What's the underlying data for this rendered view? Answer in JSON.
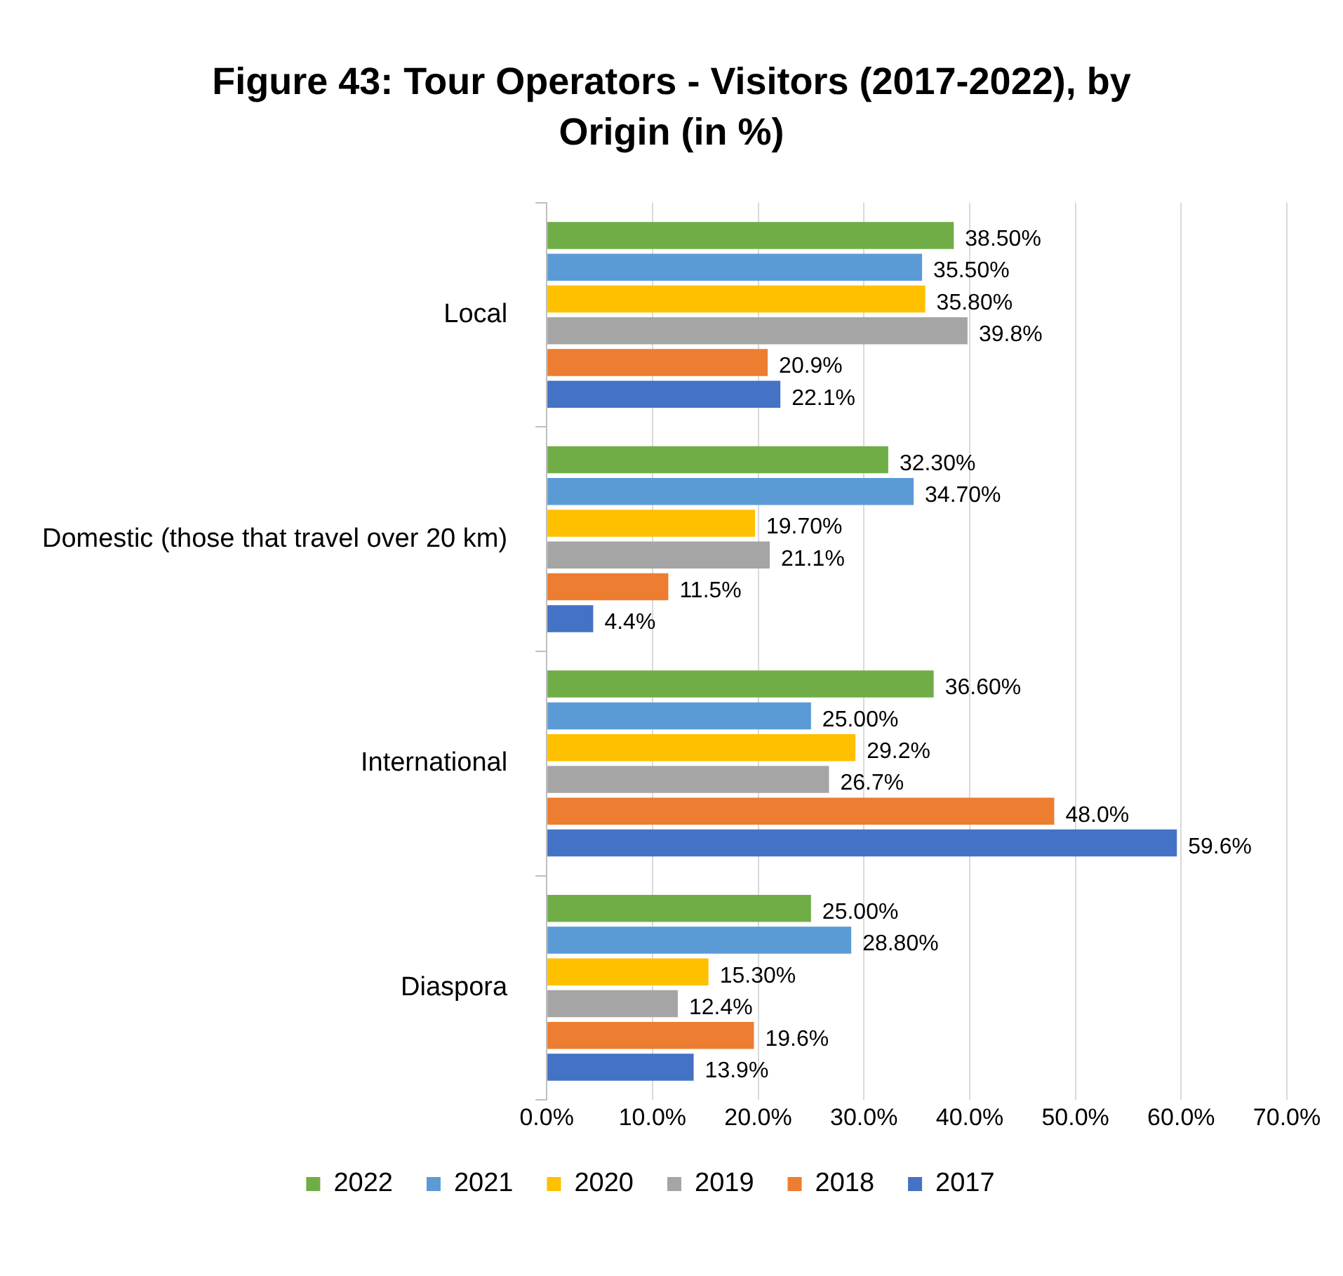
{
  "chart_data": {
    "type": "bar",
    "orientation": "horizontal",
    "title": "Figure 43: Tour Operators -  Visitors (2017-2022), by Origin (in %)",
    "categories": [
      "Local",
      "Domestic (those that travel over 20 km)",
      "International",
      "Diaspora"
    ],
    "series": [
      {
        "name": "2022",
        "color": "#70ad47",
        "values": [
          38.5,
          32.3,
          36.6,
          25.0
        ],
        "value_labels": [
          "38.50%",
          "32.30%",
          "36.60%",
          "25.00%"
        ]
      },
      {
        "name": "2021",
        "color": "#5b9bd5",
        "values": [
          35.5,
          34.7,
          25.0,
          28.8
        ],
        "value_labels": [
          "35.50%",
          "34.70%",
          "25.00%",
          "28.80%"
        ]
      },
      {
        "name": "2020",
        "color": "#ffc000",
        "values": [
          35.8,
          19.7,
          29.2,
          15.3
        ],
        "value_labels": [
          "35.80%",
          "19.70%",
          "29.2%",
          "15.30%"
        ]
      },
      {
        "name": "2019",
        "color": "#a5a5a5",
        "values": [
          39.8,
          21.1,
          26.7,
          12.4
        ],
        "value_labels": [
          "39.8%",
          "21.1%",
          "26.7%",
          "12.4%"
        ]
      },
      {
        "name": "2018",
        "color": "#ed7d31",
        "values": [
          20.9,
          11.5,
          48.0,
          19.6
        ],
        "value_labels": [
          "20.9%",
          "11.5%",
          "48.0%",
          "19.6%"
        ]
      },
      {
        "name": "2017",
        "color": "#4472c4",
        "values": [
          22.1,
          4.4,
          59.6,
          13.9
        ],
        "value_labels": [
          "22.1%",
          "4.4%",
          "59.6%",
          "13.9%"
        ]
      }
    ],
    "xlim": [
      0,
      70
    ],
    "xticks": [
      {
        "value": 0,
        "label": "0.0%"
      },
      {
        "value": 10,
        "label": "10.0%"
      },
      {
        "value": 20,
        "label": "20.0%"
      },
      {
        "value": 30,
        "label": "30.0%"
      },
      {
        "value": 40,
        "label": "40.0%"
      },
      {
        "value": 50,
        "label": "50.0%"
      },
      {
        "value": 60,
        "label": "60.0%"
      },
      {
        "value": 70,
        "label": "70.0%"
      }
    ],
    "grid": "x",
    "legend": "bottom"
  }
}
